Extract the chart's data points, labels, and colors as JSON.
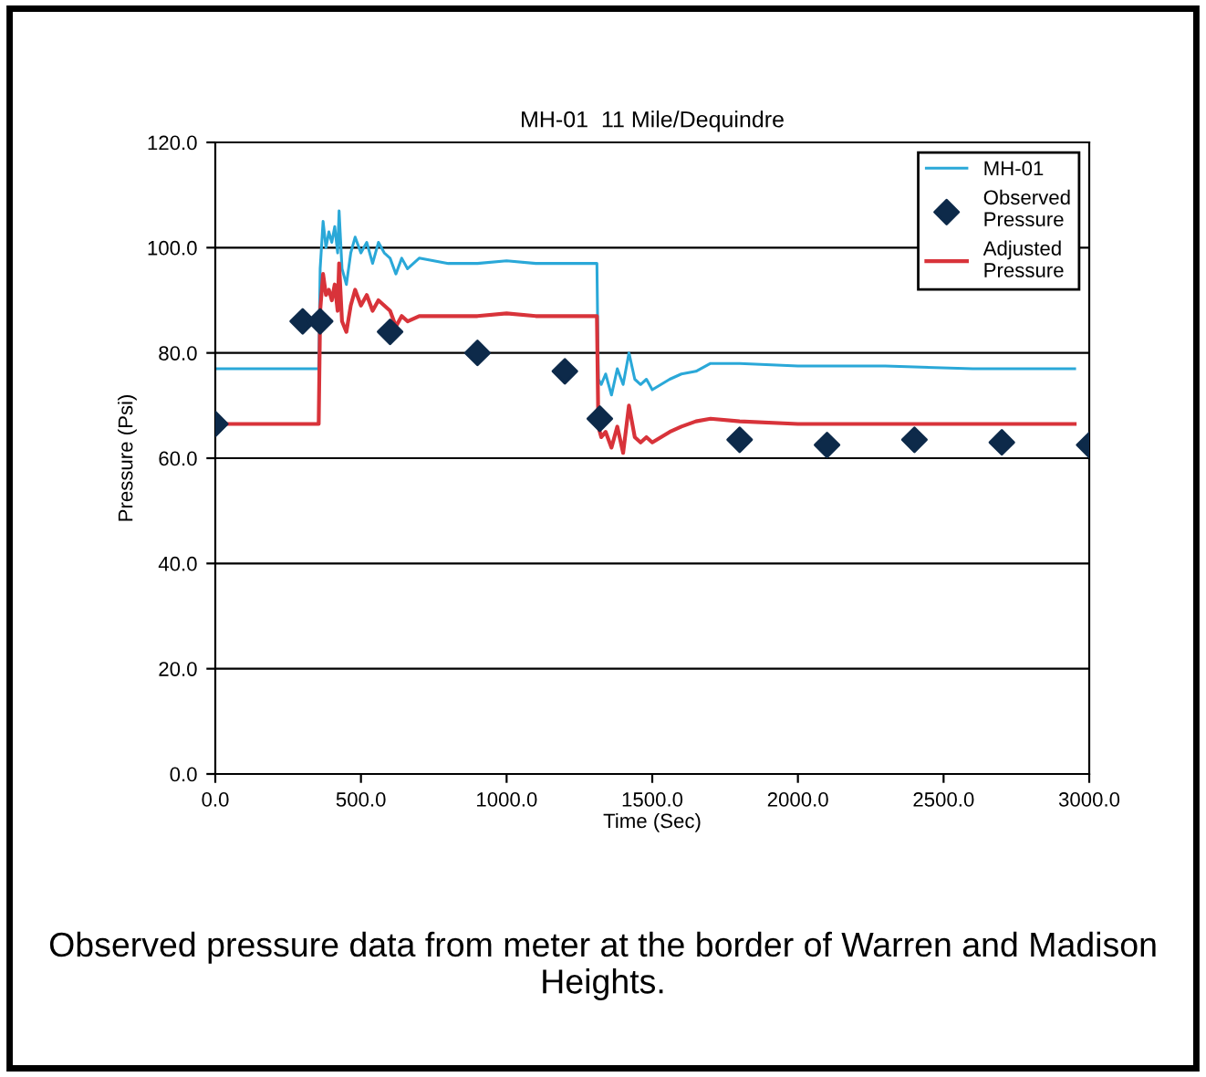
{
  "chart_data": {
    "type": "line",
    "title": "MH-01  11 Mile/Dequindre",
    "xlabel": "Time (Sec)",
    "ylabel": "Pressure (Psi)",
    "xlim": [
      0,
      3000
    ],
    "xticks": [
      {
        "value": 0,
        "label": "0.0"
      },
      {
        "value": 500,
        "label": "500.0"
      },
      {
        "value": 1000,
        "label": "1000.0"
      },
      {
        "value": 1500,
        "label": "1500.0"
      },
      {
        "value": 2000,
        "label": "2000.0"
      },
      {
        "value": 2500,
        "label": "2500.0"
      },
      {
        "value": 3000,
        "label": "3000.0"
      }
    ],
    "ylim": [
      0,
      120
    ],
    "yticks": [
      {
        "value": 0,
        "label": "0.0"
      },
      {
        "value": 20,
        "label": "20.0"
      },
      {
        "value": 40,
        "label": "40.0"
      },
      {
        "value": 60,
        "label": "60.0"
      },
      {
        "value": 80,
        "label": "80.0"
      },
      {
        "value": 100,
        "label": "100.0"
      },
      {
        "value": 120,
        "label": "120.0"
      }
    ],
    "grid": "y",
    "legend": "top right",
    "series": [
      {
        "name": "MH-01",
        "color": "#2aa8d8",
        "x": [
          0,
          355,
          360,
          370,
          380,
          390,
          400,
          410,
          420,
          425,
          435,
          450,
          465,
          480,
          500,
          520,
          540,
          560,
          580,
          600,
          620,
          640,
          660,
          700,
          800,
          900,
          1000,
          1100,
          1200,
          1310,
          1315,
          1325,
          1340,
          1360,
          1380,
          1400,
          1420,
          1440,
          1460,
          1480,
          1500,
          1530,
          1560,
          1600,
          1650,
          1700,
          1800,
          2000,
          2300,
          2600,
          2950
        ],
        "values": [
          77,
          77,
          96,
          105,
          100,
          103,
          101,
          104,
          99,
          107,
          96,
          93,
          99,
          102,
          99,
          101,
          97,
          101,
          99,
          98,
          95,
          98,
          96,
          98,
          97,
          97,
          97.5,
          97,
          97,
          97,
          75,
          74,
          76,
          72,
          77,
          74,
          80,
          75,
          74,
          75,
          73,
          74,
          75,
          76,
          76.5,
          78,
          78,
          77.5,
          77.5,
          77,
          77
        ]
      },
      {
        "name": "Observed Pressure",
        "type": "scatter",
        "color": "#0d2a4a",
        "marker": "diamond",
        "x": [
          0,
          300,
          360,
          600,
          900,
          1200,
          1320,
          1800,
          2100,
          2400,
          2700,
          3000
        ],
        "values": [
          66.5,
          86,
          86,
          84,
          80,
          76.5,
          67.5,
          63.5,
          62.5,
          63.5,
          63,
          62.5
        ]
      },
      {
        "name": "Adjusted Pressure",
        "color": "#d8333a",
        "x": [
          0,
          355,
          360,
          370,
          380,
          390,
          400,
          410,
          420,
          425,
          435,
          450,
          465,
          480,
          500,
          520,
          540,
          560,
          580,
          600,
          620,
          640,
          660,
          700,
          800,
          900,
          1000,
          1100,
          1200,
          1310,
          1315,
          1325,
          1340,
          1360,
          1380,
          1400,
          1420,
          1440,
          1460,
          1480,
          1500,
          1530,
          1560,
          1600,
          1650,
          1700,
          1800,
          2000,
          2300,
          2600,
          2950
        ],
        "values": [
          66.5,
          66.5,
          88,
          95,
          91,
          92,
          90,
          93,
          88,
          97,
          86,
          84,
          89,
          92,
          89,
          91,
          88,
          90,
          89,
          88,
          85,
          87,
          86,
          87,
          87,
          87,
          87.5,
          87,
          87,
          87,
          66,
          64,
          65,
          62,
          66,
          61,
          70,
          64,
          63,
          64,
          63,
          64,
          65,
          66,
          67,
          67.5,
          67,
          66.5,
          66.5,
          66.5,
          66.5
        ]
      }
    ],
    "annotations": [
      "Observed pressure data from meter at the border of Warren and Madison Heights."
    ]
  }
}
